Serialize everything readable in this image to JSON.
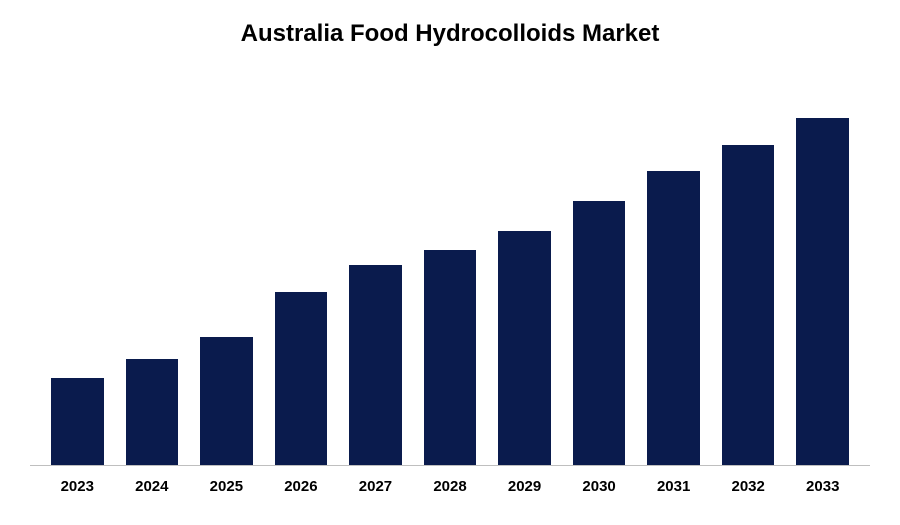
{
  "chart": {
    "type": "bar",
    "title": "Australia Food Hydrocolloids Market",
    "title_fontsize": 24,
    "title_color": "#000000",
    "background_color": "#ffffff",
    "bar_color": "#0a1b4d",
    "axis_color": "#bfbfbf",
    "label_fontsize": 15,
    "label_color": "#000000",
    "label_fontweight": "bold",
    "categories": [
      "2023",
      "2024",
      "2025",
      "2026",
      "2027",
      "2028",
      "2029",
      "2030",
      "2031",
      "2032",
      "2033"
    ],
    "values": [
      23,
      28,
      34,
      46,
      53,
      57,
      62,
      70,
      78,
      85,
      92
    ],
    "ylim": [
      0,
      100
    ]
  }
}
